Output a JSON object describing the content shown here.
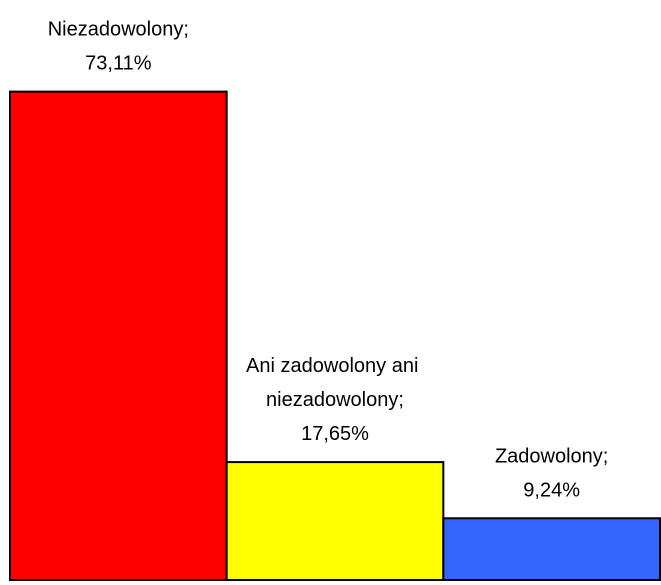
{
  "chart_data": {
    "type": "bar",
    "categories": [
      "Niezadowolony",
      "Ani zadowolony ani niezadowolony",
      "Zadowolony"
    ],
    "values": [
      73.11,
      17.65,
      9.24
    ],
    "value_labels": [
      "73,11%",
      "17,65%",
      "9,24%"
    ],
    "label_separator": ";",
    "colors": [
      "#ff0000",
      "#ffff00",
      "#3366ff"
    ],
    "ylim": [
      0,
      75
    ]
  }
}
